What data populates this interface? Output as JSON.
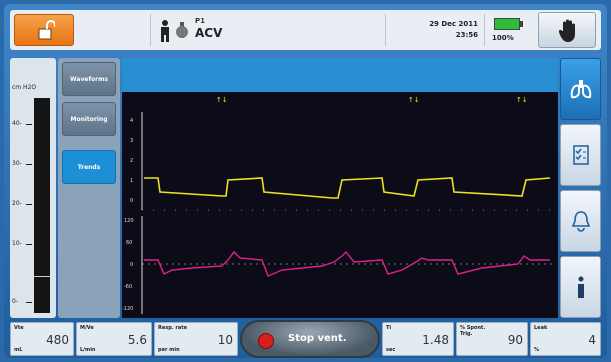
{
  "header": {
    "patient_id": "P1",
    "mode": "ACV",
    "date": "29 Dec 2011",
    "time": "23:56",
    "battery": "100%",
    "battery_level": 1.0
  },
  "pressure_scale": {
    "unit": "cm H2O",
    "ticks": [
      "40-",
      "30-",
      "20-",
      "10-",
      "0-"
    ],
    "level_fraction": 0.17
  },
  "tabs": [
    {
      "label": "Waveforms",
      "active": false
    },
    {
      "label": "Monitoring",
      "active": false
    },
    {
      "label": "Trends",
      "active": true
    }
  ],
  "graph": {
    "trigger_markers": [
      "↑↓",
      "↑↓",
      "↑↓"
    ],
    "pressure_ticks": [
      "4",
      "3",
      "2",
      "1",
      "0"
    ],
    "flow_ticks": [
      "120",
      "60",
      "0",
      "-60",
      "-120"
    ],
    "colors": {
      "pressure": "#f0e020",
      "flow": "#e0208e",
      "marker": "#f0e020"
    }
  },
  "side_buttons": [
    {
      "icon": "lungs-icon"
    },
    {
      "icon": "checklist-icon"
    },
    {
      "icon": "bell-icon"
    },
    {
      "icon": "info-icon"
    }
  ],
  "bottom": {
    "params": [
      {
        "label": "Vte",
        "unit": "mL",
        "value": "480"
      },
      {
        "label": "M/Ve",
        "unit": "L/min",
        "value": "5.6"
      },
      {
        "label": "Resp. rate",
        "unit": "per min",
        "value": "10"
      },
      {
        "label": "Ti",
        "unit": "sec",
        "value": "1.48"
      },
      {
        "label": "% Spont.\nTrig.",
        "unit": "",
        "value": "90"
      },
      {
        "label": "Leak",
        "unit": "%",
        "value": "4"
      }
    ],
    "stop_label": "Stop vent."
  }
}
